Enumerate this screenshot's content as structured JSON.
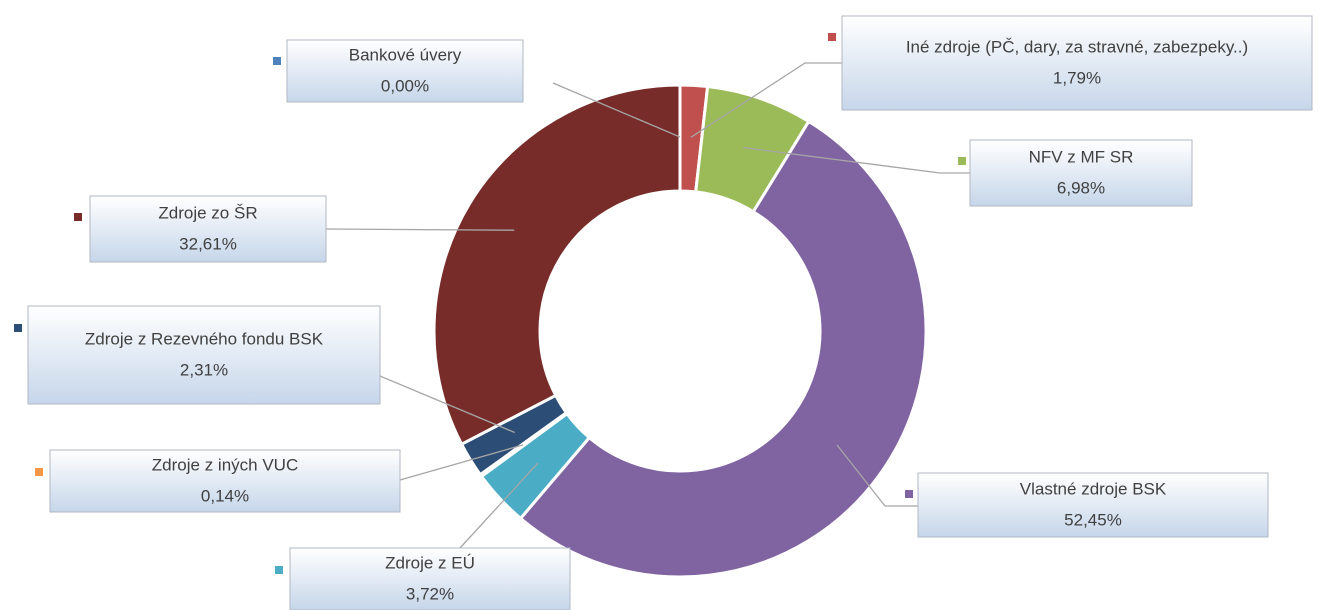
{
  "chart_data": {
    "type": "donut",
    "categories": [
      "Bankové úvery",
      "Iné zdroje (PČ, dary, za stravné, zabezpeky..)",
      "NFV z MF SR",
      "Vlastné zdroje BSK",
      "Zdroje z EÚ",
      "Zdroje z iných VUC",
      "Zdroje z Rezevného fondu BSK",
      "Zdroje zo ŠR"
    ],
    "values": [
      0.0,
      1.79,
      6.98,
      52.45,
      3.72,
      0.14,
      2.31,
      32.61
    ],
    "value_labels": [
      "0,00%",
      "1,79%",
      "6,98%",
      "52,45%",
      "3,72%",
      "0,14%",
      "2,31%",
      "32,61%"
    ],
    "colors": [
      "#4f81bd",
      "#c0504d",
      "#9bbb59",
      "#8064a2",
      "#4bacc6",
      "#f79646",
      "#2c4d75",
      "#772c2a"
    ]
  }
}
